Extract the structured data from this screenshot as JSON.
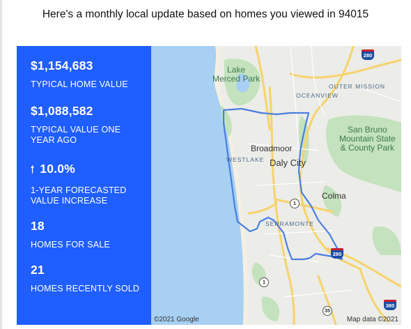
{
  "header": {
    "text": "Here's a monthly local update based on homes you viewed in 94015"
  },
  "stats": [
    {
      "value": "$1,154,683",
      "label": "TYPICAL HOME VALUE"
    },
    {
      "value": "$1,088,582",
      "label": "TYPICAL VALUE ONE YEAR AGO"
    },
    {
      "value": "10.0%",
      "label": "1-YEAR FORECASTED VALUE INCREASE",
      "icon": "arrow-up-icon"
    },
    {
      "value": "18",
      "label": "HOMES FOR SALE"
    },
    {
      "value": "21",
      "label": "HOMES RECENTLY SOLD"
    }
  ],
  "map": {
    "labels": {
      "lake_merced": "Lake\nMerced Park",
      "outer_mission": "OUTER MISSION",
      "oceanview": "OCEANVIEW",
      "san_bruno": "San Bruno\nMountain State\n& County Park",
      "broadmoor": "Broadmoor",
      "westlake": "WESTLAKE",
      "daly_city": "Daly City",
      "colma": "Colma",
      "serramonte": "SERRAMONTE"
    },
    "shields": {
      "i280_top": "280",
      "i280_mid": "280",
      "i380": "380",
      "sr1_a": "1",
      "sr1_b": "1",
      "sr35": "35"
    },
    "credits": {
      "left": "©2021 Google",
      "right": "Map data ©2021"
    },
    "colors": {
      "water": "#a7d0f2",
      "boundary": "#4a7ee0",
      "road": "#f6d36b",
      "park": "#c3e2bd"
    }
  }
}
